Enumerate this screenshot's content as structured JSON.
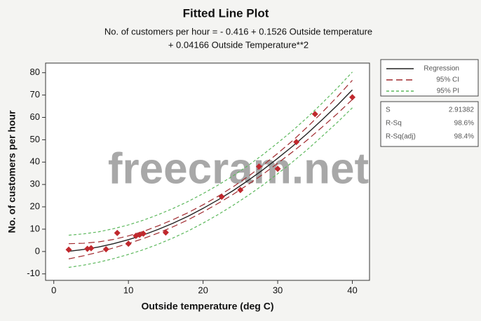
{
  "chart_data": {
    "type": "fitted-line",
    "title": "Fitted Line Plot",
    "subtitle": [
      "No. of customers per hour =  - 0.416 + 0.1526 Outside temperature",
      "+ 0.04166 Outside Temperature**2"
    ],
    "xlabel": "Outside temperature (deg C)",
    "ylabel": "No. of customers per hour",
    "xlim": [
      -1.1,
      42.3
    ],
    "ylim": [
      -12.9,
      84.3
    ],
    "xticks": [
      0,
      10,
      20,
      30,
      40
    ],
    "yticks": [
      -10,
      0,
      10,
      20,
      30,
      40,
      50,
      60,
      70,
      80
    ],
    "points": {
      "color": "#c0282d",
      "x": [
        2,
        4.5,
        5,
        7,
        8.5,
        10,
        11,
        11.5,
        12,
        15,
        22.5,
        25,
        27.5,
        30,
        32.5,
        35,
        40
      ],
      "y": [
        0.8,
        1.2,
        1.5,
        1,
        8.3,
        3.5,
        7,
        7.5,
        8,
        8.5,
        24.5,
        27.5,
        38,
        37,
        49,
        61.5,
        69
      ]
    },
    "curve_x": [
      2,
      4,
      6,
      8,
      10,
      12,
      14,
      16,
      18,
      20,
      22,
      24,
      26,
      28,
      30,
      32,
      34,
      36,
      38,
      40
    ],
    "series": [
      {
        "name": "Regression",
        "color": "#222222",
        "style": "solid",
        "values": [
          0.1,
          0.9,
          2.0,
          3.5,
          5.3,
          7.4,
          9.9,
          12.7,
          15.8,
          19.3,
          23.1,
          27.2,
          31.7,
          36.5,
          41.7,
          47.1,
          52.9,
          59.1,
          65.5,
          72.3
        ]
      },
      {
        "name": "95% CI",
        "color": "#a0282d",
        "style": "dash",
        "lower": [
          -3.3,
          -1.9,
          -0.3,
          1.6,
          3.6,
          5.8,
          8.3,
          11.1,
          14.2,
          17.7,
          21.5,
          25.5,
          29.9,
          34.5,
          39.5,
          44.6,
          50.0,
          55.8,
          61.7,
          68.0
        ],
        "upper": [
          3.5,
          3.7,
          4.3,
          5.4,
          7.0,
          9.0,
          11.5,
          14.3,
          17.4,
          20.9,
          24.7,
          28.9,
          33.5,
          38.5,
          43.9,
          49.6,
          55.8,
          62.4,
          69.3,
          76.6
        ]
      },
      {
        "name": "95% PI",
        "color": "#5cb85c",
        "style": "dot",
        "lower": [
          -7.1,
          -6.1,
          -4.8,
          -3.2,
          -1.3,
          0.8,
          3.3,
          6.1,
          9.2,
          12.7,
          16.5,
          20.6,
          25.0,
          29.7,
          34.8,
          40.1,
          45.7,
          51.7,
          57.8,
          64.3
        ],
        "upper": [
          7.3,
          7.9,
          8.8,
          10.2,
          11.9,
          14.0,
          16.5,
          19.3,
          22.4,
          25.9,
          29.7,
          33.8,
          38.4,
          43.3,
          48.6,
          54.1,
          60.1,
          66.5,
          73.2,
          80.3
        ]
      }
    ],
    "stats": [
      {
        "label": "S",
        "value": 2.91382
      },
      {
        "label": "R-Sq",
        "value": "98.6%"
      },
      {
        "label": "R-Sq(adj)",
        "value": "98.4%"
      }
    ],
    "watermark": "freecram.net"
  }
}
